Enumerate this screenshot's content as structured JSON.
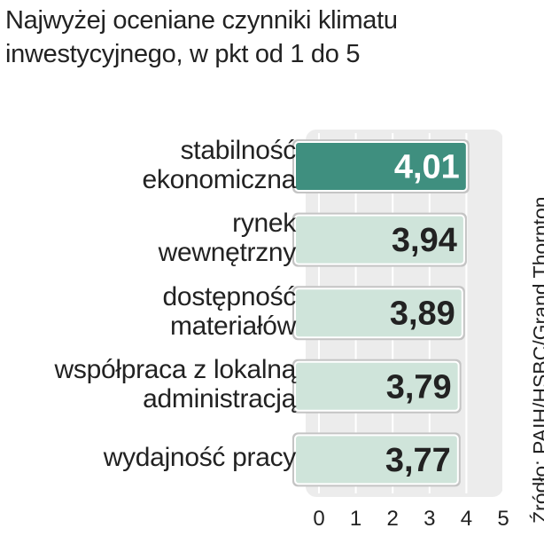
{
  "chart_data": {
    "type": "bar",
    "orientation": "horizontal",
    "title": "Najwyżej oceniane czynniki klimatu\ninwestycyjnego, w pkt od 1 do 5",
    "source": "Źródło: PAIH/HSBC/Grand Thornton",
    "categories": [
      "stabilność\nekonomiczna",
      "rynek\nwewnętrzny",
      "dostępność\nmateriałów",
      "współpraca z lokalną\nadministracją",
      "wydajność pracy"
    ],
    "values": [
      4.01,
      3.94,
      3.89,
      3.79,
      3.77
    ],
    "value_labels": [
      "4,01",
      "3,94",
      "3,89",
      "3,79",
      "3,77"
    ],
    "colors": [
      "#3f8f7f",
      "#cfe4da",
      "#cfe4da",
      "#cfe4da",
      "#cfe4da"
    ],
    "xlim": [
      0,
      5
    ],
    "xticks": [
      0,
      1,
      2,
      3,
      4,
      5
    ],
    "grid": true
  }
}
